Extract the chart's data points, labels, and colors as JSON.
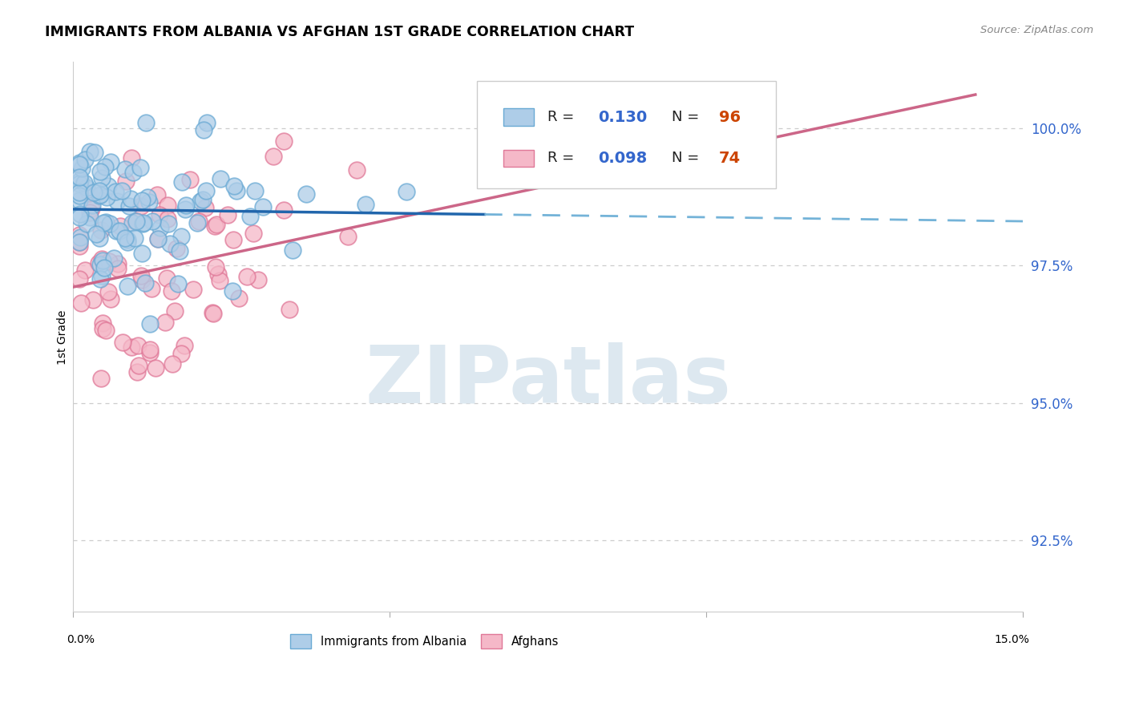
{
  "title": "IMMIGRANTS FROM ALBANIA VS AFGHAN 1ST GRADE CORRELATION CHART",
  "source": "Source: ZipAtlas.com",
  "ylabel": "1st Grade",
  "ytick_labels": [
    "100.0%",
    "97.5%",
    "95.0%",
    "92.5%"
  ],
  "ytick_values": [
    1.0,
    0.975,
    0.95,
    0.925
  ],
  "xmin": 0.0,
  "xmax": 0.15,
  "ymin": 0.912,
  "ymax": 1.012,
  "legend_R1": "0.130",
  "legend_N1": "96",
  "legend_R2": "0.098",
  "legend_N2": "74",
  "color_blue_fill": "#aecde8",
  "color_blue_edge": "#6aaad4",
  "color_blue_line": "#2166ac",
  "color_blue_dash": "#74b3d8",
  "color_pink_fill": "#f5b8c8",
  "color_pink_edge": "#e07898",
  "color_pink_line": "#cc6688",
  "grid_color": "#cccccc",
  "right_axis_color": "#3366cc",
  "watermark_color": "#dde8f0",
  "background_color": "#ffffff",
  "n_albania": 96,
  "n_afghan": 74,
  "seed_albania": 10,
  "seed_afghan": 20
}
